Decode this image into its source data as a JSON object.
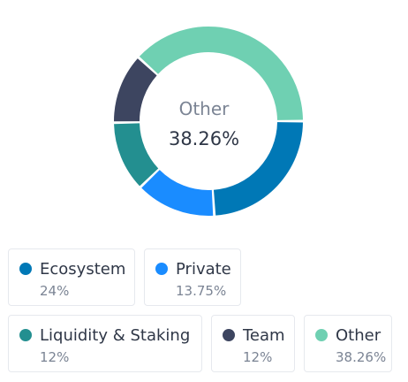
{
  "center": {
    "label": "Other",
    "value": "38.26%"
  },
  "chart_data": {
    "type": "pie",
    "donut": true,
    "start_angle_deg": 90,
    "series": [
      {
        "name": "Ecosystem",
        "value": 24,
        "display": "24%",
        "color": "#0078b6"
      },
      {
        "name": "Private",
        "value": 13.75,
        "display": "13.75%",
        "color": "#1a8cff"
      },
      {
        "name": "Liquidity & Staking",
        "value": 12,
        "display": "12%",
        "color": "#238f90"
      },
      {
        "name": "Team",
        "value": 12,
        "display": "12%",
        "color": "#3d4560"
      },
      {
        "name": "Other",
        "value": 38.26,
        "display": "38.26%",
        "color": "#6fd0b2"
      }
    ]
  }
}
